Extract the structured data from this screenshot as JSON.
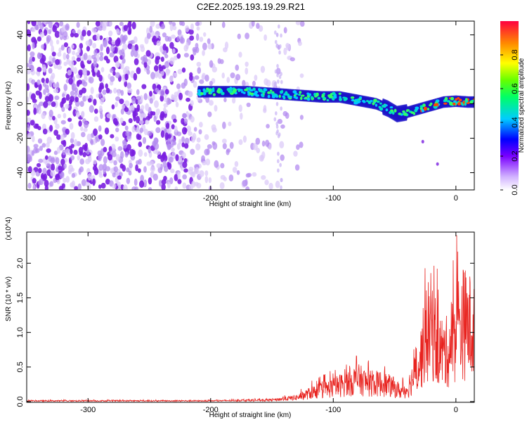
{
  "title": "C2E2.2025.193.19.29.R21",
  "chart_data": [
    {
      "type": "heatmap",
      "xlabel": "Height of straight line (km)",
      "ylabel": "Frequency (Hz)",
      "xlim": [
        -350,
        15
      ],
      "ylim": [
        -50,
        48
      ],
      "xticks": [
        -300,
        -200,
        -100,
        0
      ],
      "yticks": [
        -40,
        -20,
        0,
        20,
        40
      ],
      "colorbar": {
        "label": "Normalized spectral amplitude",
        "range": [
          0,
          1
        ],
        "ticks": [
          "0.0",
          "0.2",
          "0.4",
          "0.6",
          "0.8"
        ]
      },
      "signal_band": {
        "x": [
          -210,
          -190,
          -170,
          -150,
          -130,
          -110,
          -95,
          -80,
          -65,
          -55,
          -48,
          -40,
          -30,
          -20,
          -10,
          0,
          10,
          15
        ],
        "frequency": [
          7,
          7,
          7,
          6,
          5,
          4,
          4,
          2,
          0,
          -3,
          -6,
          -5,
          -3,
          -1,
          1,
          1.5,
          1,
          1
        ]
      }
    },
    {
      "type": "line",
      "xlabel": "Height of straight line (km)",
      "ylabel": "SNR (10 * v/v)",
      "multiplier": "(x10^4)",
      "xlim": [
        -350,
        15
      ],
      "ylim": [
        -0.01,
        2.45
      ],
      "xticks": [
        -300,
        -200,
        -100,
        0
      ],
      "yticks": [
        "0.0",
        "0.5",
        "1.0",
        "1.5",
        "2.0"
      ],
      "color": "#e8231f",
      "envelope_x": [
        -350,
        -200,
        -150,
        -130,
        -115,
        -100,
        -90,
        -80,
        -70,
        -60,
        -50,
        -45,
        -40,
        -30,
        -25,
        -20,
        -15,
        -10,
        -5,
        0,
        5,
        10,
        15
      ],
      "envelope_y": [
        0.02,
        0.02,
        0.04,
        0.1,
        0.25,
        0.35,
        0.45,
        0.55,
        0.45,
        0.45,
        0.35,
        0.25,
        0.3,
        0.9,
        1.6,
        1.9,
        1.4,
        1.2,
        1.3,
        1.8,
        2.0,
        1.9,
        1.8
      ]
    }
  ]
}
